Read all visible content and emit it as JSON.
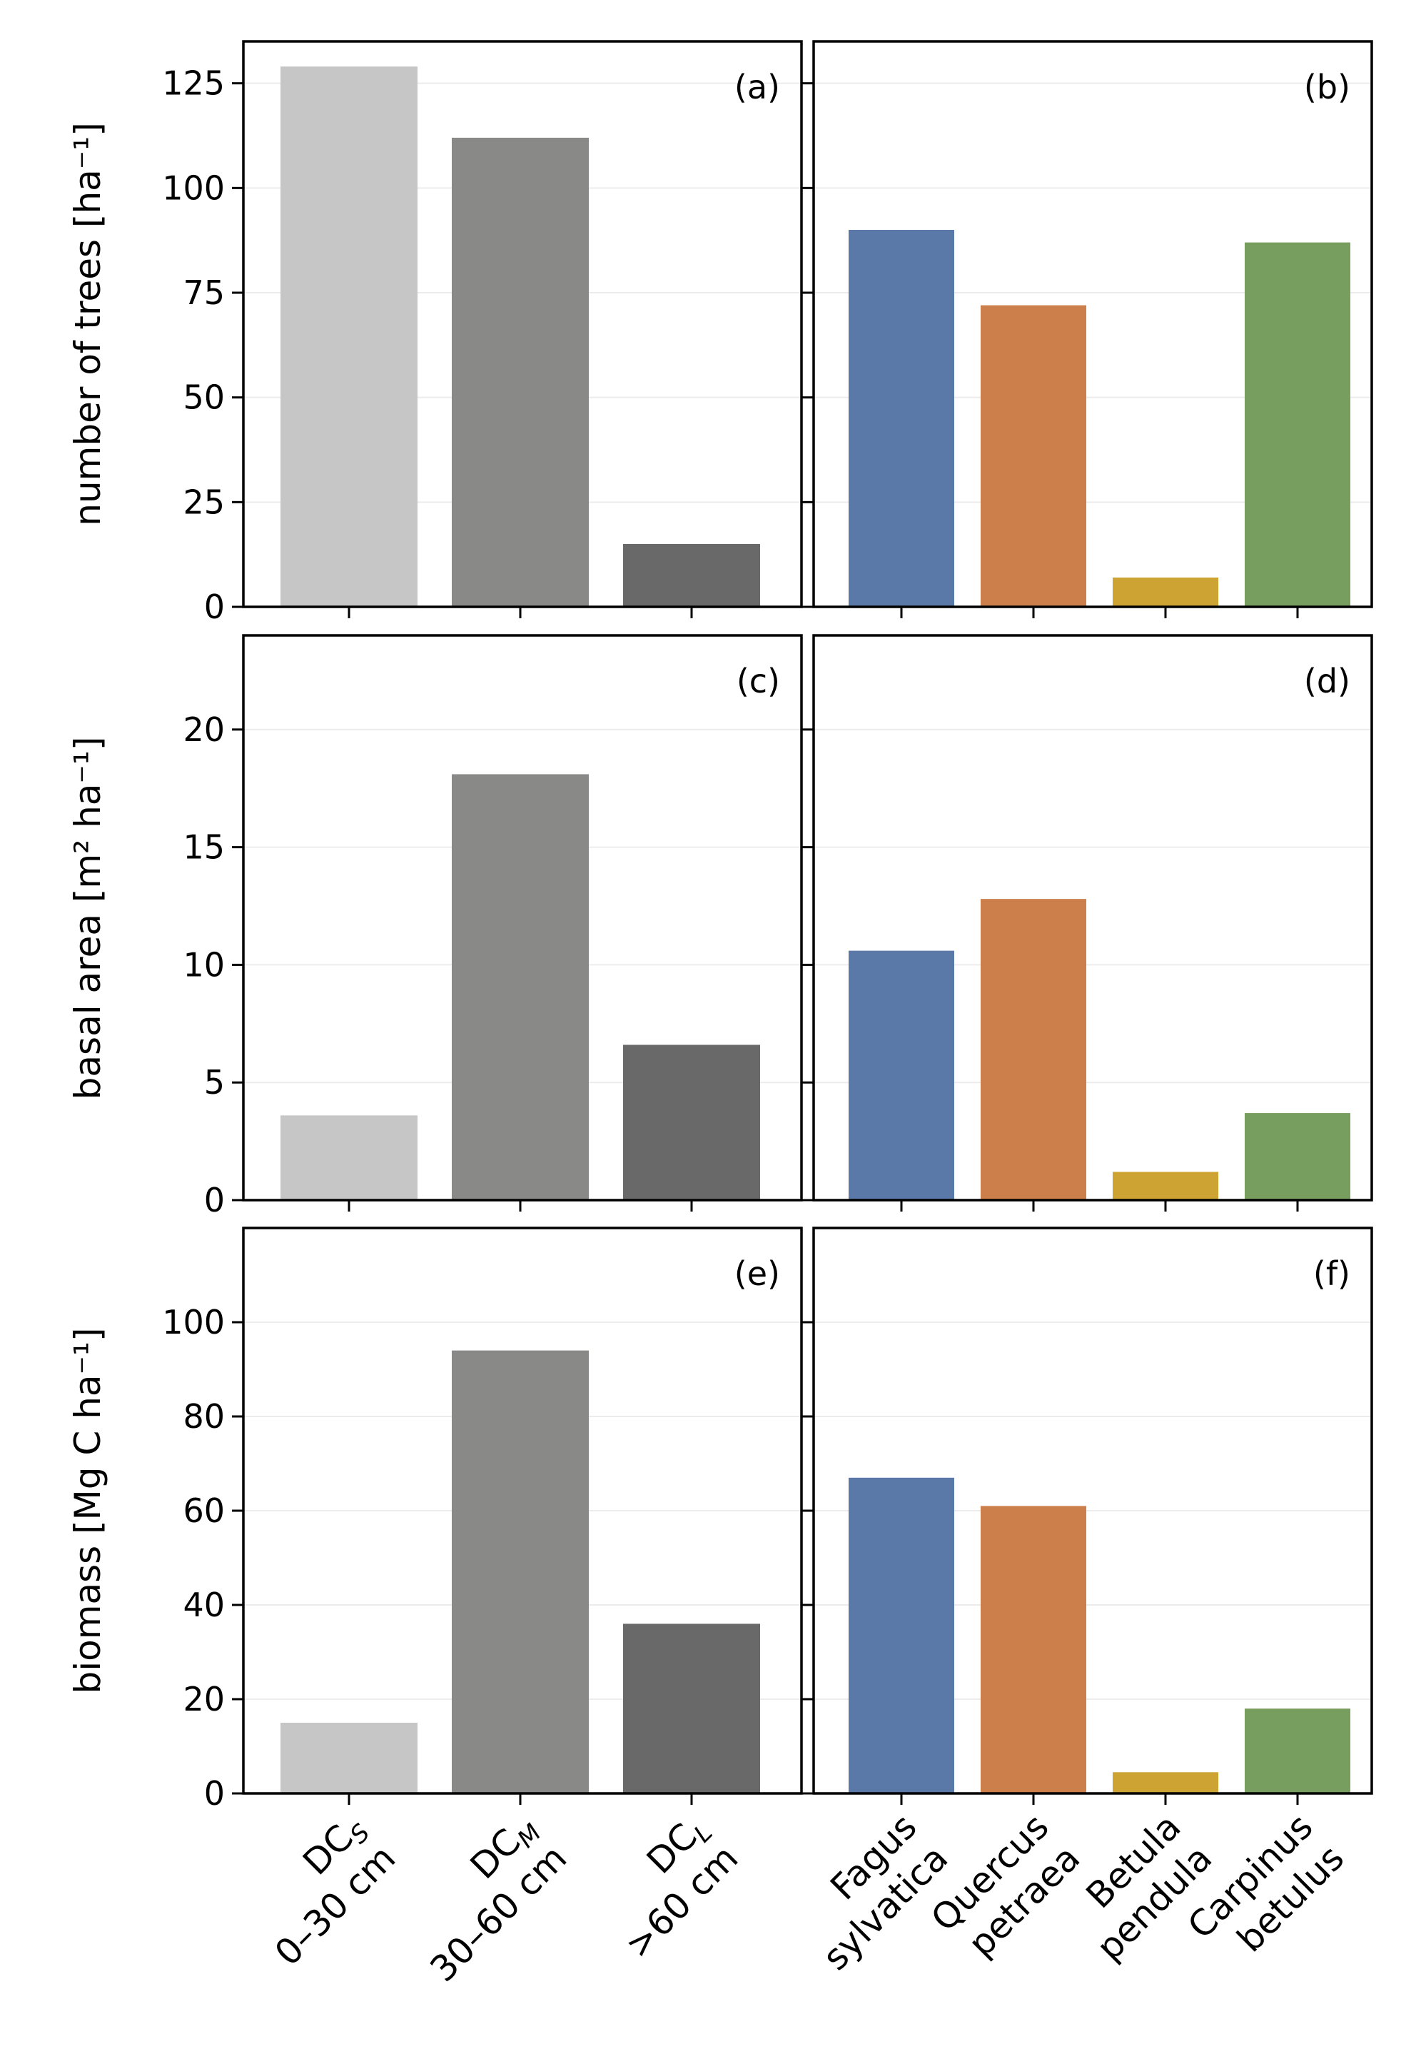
{
  "chart_data": [
    {
      "type": "bar",
      "panel_label": "(a)",
      "ylabel": "number of trees [ha⁻¹]",
      "categories": [
        "DC_S 0–30 cm",
        "DC_M 30–60 cm",
        "DC_L >60 cm"
      ],
      "values": [
        129,
        112,
        15
      ],
      "ylim": [
        0,
        135
      ],
      "yticks": [
        0,
        25,
        50,
        75,
        100,
        125
      ],
      "colors": [
        "#c7c6c7",
        "#898988",
        "#696969"
      ],
      "grid": "horizontal"
    },
    {
      "type": "bar",
      "panel_label": "(b)",
      "categories": [
        "Fagus sylvatica",
        "Quercus petraea",
        "Betula pendula",
        "Carpinus betulus"
      ],
      "values": [
        90,
        72,
        7,
        87
      ],
      "ylim": [
        0,
        135
      ],
      "yticks": [
        0,
        25,
        50,
        75,
        100,
        125
      ],
      "colors": [
        "#5a78a8",
        "#cc7f4b",
        "#cda334",
        "#779e5e"
      ],
      "grid": "horizontal"
    },
    {
      "type": "bar",
      "panel_label": "(c)",
      "ylabel": "basal area [m² ha⁻¹]",
      "categories": [
        "DC_S 0–30 cm",
        "DC_M 30–60 cm",
        "DC_L >60 cm"
      ],
      "values": [
        3.6,
        18.1,
        6.6
      ],
      "ylim": [
        0,
        24
      ],
      "yticks": [
        0,
        5,
        10,
        15,
        20
      ],
      "colors": [
        "#c7c6c7",
        "#898988",
        "#696969"
      ],
      "grid": "horizontal"
    },
    {
      "type": "bar",
      "panel_label": "(d)",
      "categories": [
        "Fagus sylvatica",
        "Quercus petraea",
        "Betula pendula",
        "Carpinus betulus"
      ],
      "values": [
        10.6,
        12.8,
        1.2,
        3.7
      ],
      "ylim": [
        0,
        24
      ],
      "yticks": [
        0,
        5,
        10,
        15,
        20
      ],
      "colors": [
        "#5a78a8",
        "#cc7f4b",
        "#cda334",
        "#779e5e"
      ],
      "grid": "horizontal"
    },
    {
      "type": "bar",
      "panel_label": "(e)",
      "ylabel": "biomass [Mg C ha⁻¹]",
      "categories": [
        "DC_S 0–30 cm",
        "DC_M 30–60 cm",
        "DC_L >60 cm"
      ],
      "values": [
        15,
        94,
        36
      ],
      "ylim": [
        0,
        120
      ],
      "yticks": [
        0,
        20,
        40,
        60,
        80,
        100
      ],
      "colors": [
        "#c7c6c7",
        "#898988",
        "#696969"
      ],
      "grid": "horizontal"
    },
    {
      "type": "bar",
      "panel_label": "(f)",
      "categories": [
        "Fagus sylvatica",
        "Quercus petraea",
        "Betula pendula",
        "Carpinus betulus"
      ],
      "values": [
        67,
        61,
        4.5,
        18
      ],
      "ylim": [
        0,
        120
      ],
      "yticks": [
        0,
        20,
        40,
        60,
        80,
        100
      ],
      "colors": [
        "#5a78a8",
        "#cc7f4b",
        "#cda334",
        "#779e5e"
      ],
      "grid": "horizontal"
    }
  ],
  "x_tick_labels": {
    "diameter_classes": [
      {
        "base": "DC",
        "sub": "S",
        "range": "0–30 cm"
      },
      {
        "base": "DC",
        "sub": "M",
        "range": "30–60 cm"
      },
      {
        "base": "DC",
        "sub": "L",
        "range": ">60 cm"
      }
    ],
    "species": [
      {
        "genus": "Fagus",
        "epithet": "sylvatica"
      },
      {
        "genus": "Quercus",
        "epithet": "petraea"
      },
      {
        "genus": "Betula",
        "epithet": "pendula"
      },
      {
        "genus": "Carpinus",
        "epithet": "betulus"
      }
    ]
  }
}
